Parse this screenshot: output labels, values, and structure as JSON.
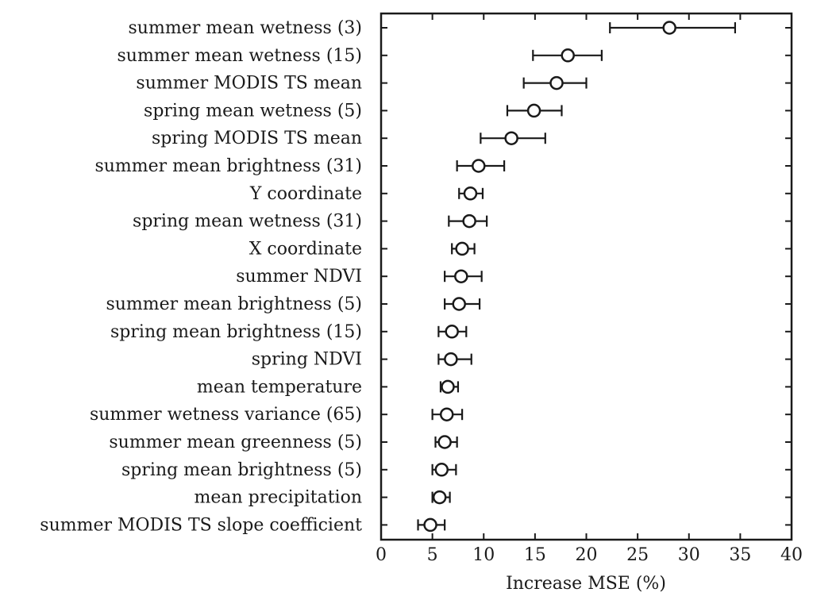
{
  "chart_data": {
    "type": "scatter",
    "title": "",
    "xlabel": "Increase MSE (%)",
    "ylabel": "",
    "xlim": [
      0,
      40
    ],
    "xticks": [
      0,
      5,
      10,
      15,
      20,
      25,
      30,
      35,
      40
    ],
    "grid": false,
    "colors": {
      "marker_fill": "#ffffff",
      "marker_stroke": "#1a1a1a",
      "axis": "#1a1a1a"
    },
    "series": [
      {
        "name": "Increase MSE",
        "points": [
          {
            "label": "summer mean wetness (3)",
            "value": 28.1,
            "low": 22.3,
            "high": 34.5
          },
          {
            "label": "summer mean wetness (15)",
            "value": 18.2,
            "low": 14.8,
            "high": 21.5
          },
          {
            "label": "summer MODIS TS mean",
            "value": 17.1,
            "low": 13.9,
            "high": 20.0
          },
          {
            "label": "spring mean wetness (5)",
            "value": 14.9,
            "low": 12.3,
            "high": 17.6
          },
          {
            "label": "spring MODIS TS mean",
            "value": 12.7,
            "low": 9.7,
            "high": 16.0
          },
          {
            "label": "summer mean brightness (31)",
            "value": 9.5,
            "low": 7.4,
            "high": 12.0
          },
          {
            "label": "Y coordinate",
            "value": 8.7,
            "low": 7.6,
            "high": 9.9
          },
          {
            "label": "spring mean wetness (31)",
            "value": 8.6,
            "low": 6.6,
            "high": 10.3
          },
          {
            "label": "X coordinate",
            "value": 7.9,
            "low": 6.9,
            "high": 9.1
          },
          {
            "label": "summer NDVI",
            "value": 7.8,
            "low": 6.2,
            "high": 9.8
          },
          {
            "label": "summer mean brightness (5)",
            "value": 7.6,
            "low": 6.2,
            "high": 9.6
          },
          {
            "label": "spring mean brightness (15)",
            "value": 6.9,
            "low": 5.6,
            "high": 8.3
          },
          {
            "label": "spring NDVI",
            "value": 6.8,
            "low": 5.6,
            "high": 8.8
          },
          {
            "label": "mean temperature",
            "value": 6.5,
            "low": 5.8,
            "high": 7.5
          },
          {
            "label": "summer wetness variance (65)",
            "value": 6.4,
            "low": 5.0,
            "high": 7.9
          },
          {
            "label": "summer mean greenness (5)",
            "value": 6.2,
            "low": 5.3,
            "high": 7.4
          },
          {
            "label": "spring mean brightness (5)",
            "value": 5.9,
            "low": 5.0,
            "high": 7.3
          },
          {
            "label": "mean precipitation",
            "value": 5.7,
            "low": 5.0,
            "high": 6.7
          },
          {
            "label": "summer MODIS TS slope coefficient",
            "value": 4.8,
            "low": 3.6,
            "high": 6.2
          }
        ]
      }
    ]
  }
}
